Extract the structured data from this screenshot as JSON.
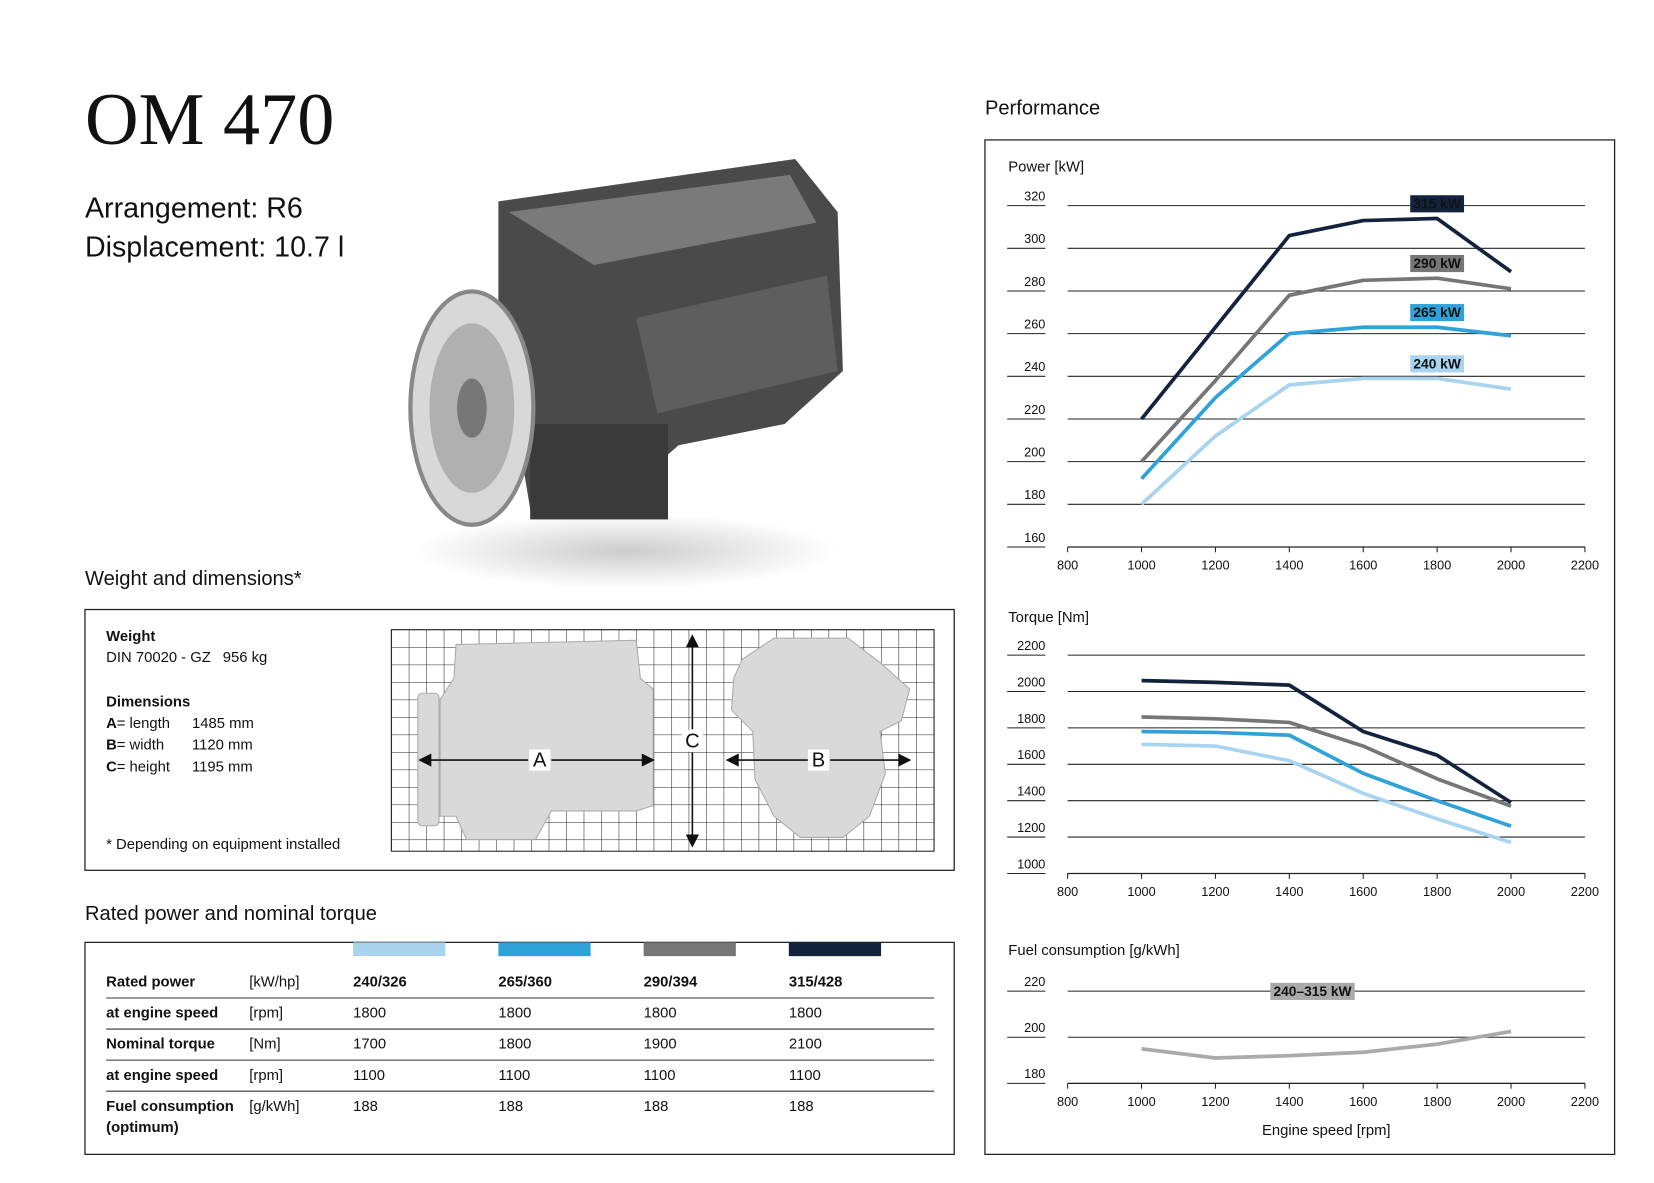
{
  "header": {
    "title": "OM 470",
    "arrangement": "Arrangement: R6",
    "displacement": "Displacement: 10.7 l"
  },
  "weight_dimensions": {
    "title": "Weight and dimensions*",
    "weight_heading": "Weight",
    "weight_standard": "DIN 70020 - GZ",
    "weight_value": "956 kg",
    "dimensions_heading": "Dimensions",
    "dimensions": [
      {
        "key": "A",
        "desc": "= length",
        "value": "1485 mm"
      },
      {
        "key": "B",
        "desc": "= width",
        "value": "1120 mm"
      },
      {
        "key": "C",
        "desc": "= height",
        "value": "1195 mm"
      }
    ],
    "footnote": "* Depending on equipment installed"
  },
  "rated_table": {
    "title": "Rated power and nominal torque",
    "rows": [
      {
        "label": [
          "Rated power"
        ],
        "unit": "[kW/hp]",
        "values": [
          "240/326",
          "265/360",
          "290/394",
          "315/428"
        ]
      },
      {
        "label": [
          "at engine speed"
        ],
        "unit": "[rpm]",
        "values": [
          1800,
          1800,
          1800,
          1800
        ]
      },
      {
        "label": [
          "Nominal torque"
        ],
        "unit": "[Nm]",
        "values": [
          1700,
          1800,
          1900,
          2100
        ]
      },
      {
        "label": [
          "at engine speed"
        ],
        "unit": "[rpm]",
        "values": [
          1100,
          1100,
          1100,
          1100
        ]
      },
      {
        "label": [
          "Fuel consumption",
          "(optimum)"
        ],
        "unit": "[g/kWh]",
        "values": [
          188,
          188,
          188,
          188
        ]
      }
    ]
  },
  "performance_title": "Performance",
  "chart_data": [
    {
      "type": "line",
      "title": "Power [kW]",
      "x": [
        1000,
        1200,
        1400,
        1600,
        1800,
        2000
      ],
      "xlim": [
        800,
        2200
      ],
      "xticks": [
        800,
        1000,
        1200,
        1400,
        1600,
        1800,
        2000,
        2200
      ],
      "ylim": [
        160,
        320
      ],
      "yticks": [
        160,
        180,
        200,
        220,
        240,
        260,
        280,
        300,
        320
      ],
      "grid": true,
      "series": [
        {
          "name": "315 kW",
          "color": "#13233d",
          "values": [
            220,
            263,
            306,
            313,
            314,
            289
          ]
        },
        {
          "name": "290 kW",
          "color": "#767676",
          "values": [
            200,
            238,
            278,
            285,
            286,
            281
          ]
        },
        {
          "name": "265 kW",
          "color": "#2fa2d9",
          "values": [
            192,
            230,
            260,
            263,
            263,
            259
          ]
        },
        {
          "name": "240 kW",
          "color": "#a8d4ef",
          "values": [
            180,
            212,
            236,
            239,
            239,
            234
          ]
        }
      ]
    },
    {
      "type": "line",
      "title": "Torque [Nm]",
      "x": [
        1000,
        1200,
        1400,
        1600,
        1800,
        2000
      ],
      "xlim": [
        800,
        2200
      ],
      "xticks": [
        800,
        1000,
        1200,
        1400,
        1600,
        1800,
        2000,
        2200
      ],
      "ylim": [
        1000,
        2200
      ],
      "yticks": [
        1000,
        1200,
        1400,
        1600,
        1800,
        2000,
        2200
      ],
      "grid": true,
      "series": [
        {
          "color": "#13233d",
          "values": [
            2060,
            2050,
            2035,
            1780,
            1650,
            1390
          ]
        },
        {
          "color": "#767676",
          "values": [
            1860,
            1850,
            1830,
            1700,
            1520,
            1370
          ]
        },
        {
          "color": "#2fa2d9",
          "values": [
            1780,
            1775,
            1760,
            1550,
            1400,
            1260
          ]
        },
        {
          "color": "#a8d4ef",
          "values": [
            1710,
            1700,
            1620,
            1440,
            1300,
            1170
          ]
        }
      ]
    },
    {
      "type": "line",
      "title": "Fuel consumption [g/kWh]",
      "x_label": "Engine speed [rpm]",
      "x": [
        1000,
        1200,
        1400,
        1600,
        1800,
        2000
      ],
      "xlim": [
        800,
        2200
      ],
      "xticks": [
        800,
        1000,
        1200,
        1400,
        1600,
        1800,
        2000,
        2200
      ],
      "ylim": [
        180,
        220
      ],
      "yticks": [
        180,
        200,
        220
      ],
      "grid": true,
      "series": [
        {
          "name": "240–315 kW",
          "color": "#aaaaaa",
          "values": [
            195,
            191,
            192,
            193.5,
            197,
            202.5
          ]
        }
      ]
    }
  ]
}
